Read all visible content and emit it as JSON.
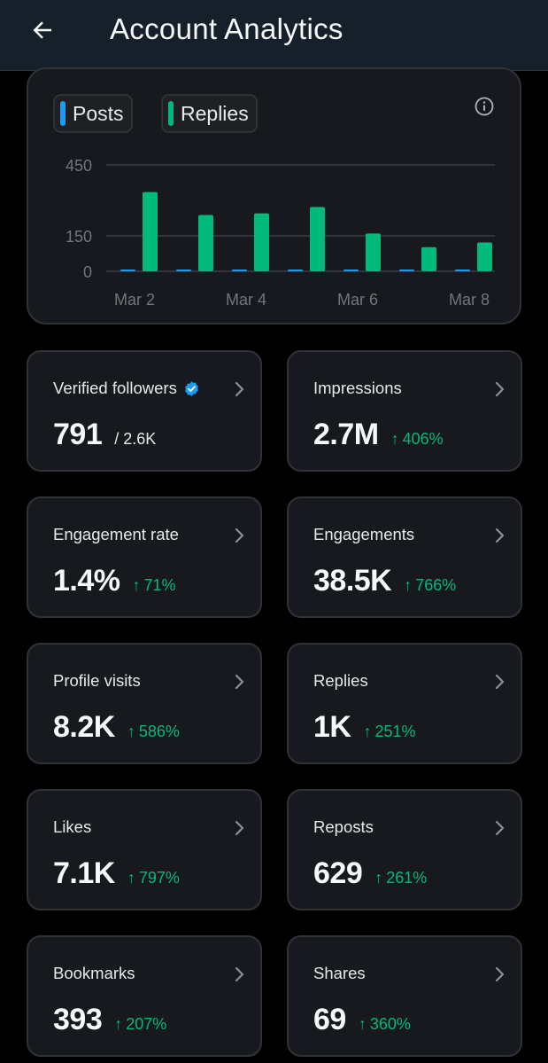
{
  "header": {
    "title": "Account Analytics"
  },
  "legend": {
    "posts": {
      "label": "Posts",
      "color": "#1d9bf0"
    },
    "replies": {
      "label": "Replies",
      "color": "#00ba7c"
    }
  },
  "chart_data": {
    "type": "bar",
    "categories": [
      "Mar 2",
      "Mar 3",
      "Mar 4",
      "Mar 5",
      "Mar 6",
      "Mar 7",
      "Mar 8"
    ],
    "x_tick_labels": [
      "Mar 2",
      "Mar 4",
      "Mar 6",
      "Mar 8"
    ],
    "series": [
      {
        "name": "Posts",
        "values": [
          6,
          2,
          2,
          6,
          4,
          1,
          5
        ],
        "color": "#1d9bf0"
      },
      {
        "name": "Replies",
        "values": [
          335,
          238,
          245,
          272,
          160,
          102,
          122
        ],
        "color": "#00ba7c"
      }
    ],
    "y_ticks": [
      "450",
      "150",
      "0"
    ],
    "ylim": [
      0,
      450
    ],
    "grid": true,
    "legend_position": "top-left"
  },
  "stats": [
    {
      "label": "Verified followers",
      "value": "791",
      "sub": "/ 2.6K",
      "change": "",
      "verified": true
    },
    {
      "label": "Impressions",
      "value": "2.7M",
      "sub": "",
      "change": "406%"
    },
    {
      "label": "Engagement rate",
      "value": "1.4%",
      "sub": "",
      "change": "71%"
    },
    {
      "label": "Engagements",
      "value": "38.5K",
      "sub": "",
      "change": "766%"
    },
    {
      "label": "Profile visits",
      "value": "8.2K",
      "sub": "",
      "change": "586%"
    },
    {
      "label": "Replies",
      "value": "1K",
      "sub": "",
      "change": "251%"
    },
    {
      "label": "Likes",
      "value": "7.1K",
      "sub": "",
      "change": "797%"
    },
    {
      "label": "Reposts",
      "value": "629",
      "sub": "",
      "change": "261%"
    },
    {
      "label": "Bookmarks",
      "value": "393",
      "sub": "",
      "change": "207%"
    },
    {
      "label": "Shares",
      "value": "69",
      "sub": "",
      "change": "360%"
    }
  ],
  "arrow_glyph": "↑"
}
